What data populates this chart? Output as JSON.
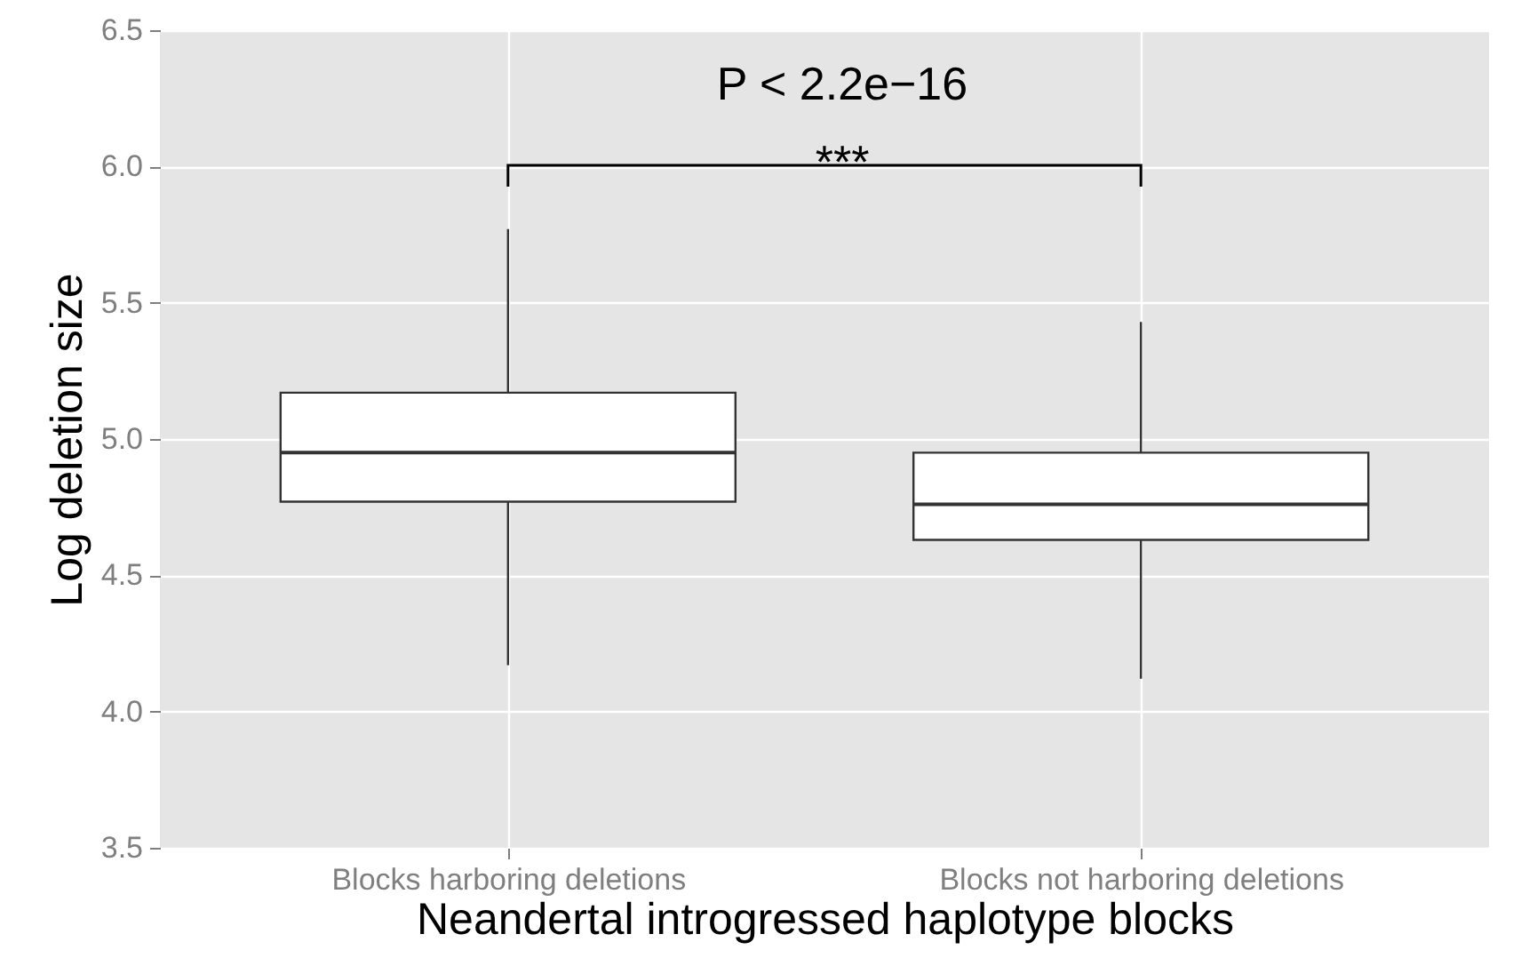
{
  "chart_data": {
    "type": "box",
    "xlabel": "Neandertal introgressed haplotype blocks",
    "ylabel": "Log deletion size",
    "categories": [
      "Blocks harboring deletions",
      "Blocks not harboring deletions"
    ],
    "boxes": [
      {
        "low": 4.17,
        "q1": 4.77,
        "median": 4.95,
        "q3": 5.17,
        "high": 5.77
      },
      {
        "low": 4.12,
        "q1": 4.63,
        "median": 4.76,
        "q3": 4.95,
        "high": 5.43
      }
    ],
    "ylim": [
      3.5,
      6.5
    ],
    "yticks": [
      {
        "value": 3.5,
        "label": "3.5"
      },
      {
        "value": 4,
        "label": "4.0"
      },
      {
        "value": 4.5,
        "label": "4.5"
      },
      {
        "value": 5,
        "label": "5.0"
      },
      {
        "value": 5.5,
        "label": "5.5"
      },
      {
        "value": 6,
        "label": "6.0"
      },
      {
        "value": 6.5,
        "label": "6.5"
      }
    ],
    "grid": true,
    "annotations": [
      "P < 2.2e−16",
      "***"
    ]
  }
}
